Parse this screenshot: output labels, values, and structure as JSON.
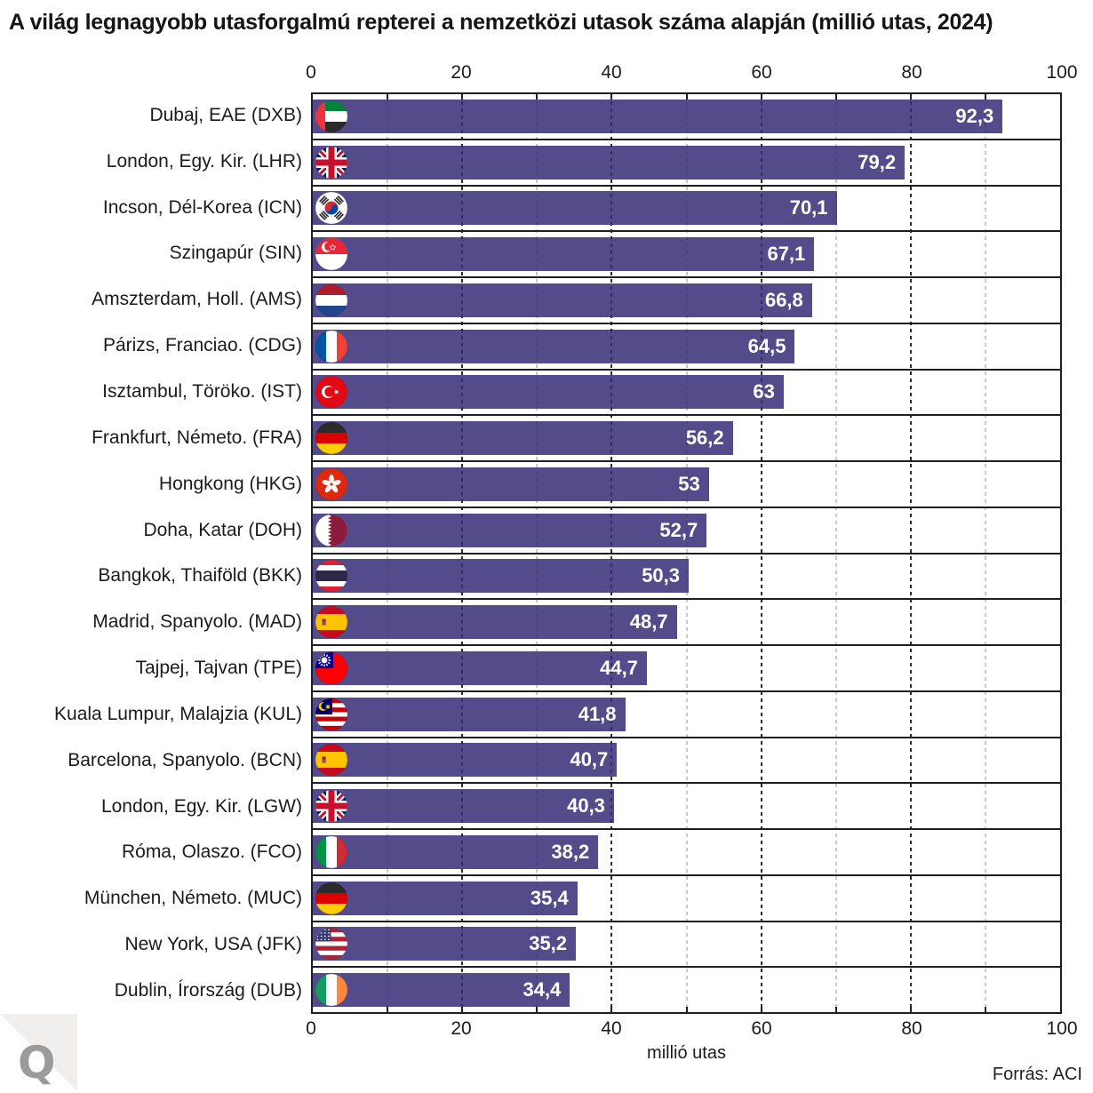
{
  "title": "A világ legnagyobb utasforgalmú repterei a nemzetközi utasok száma alapján (millió utas, 2024)",
  "source_label": "Forrás: ACI",
  "logo": {
    "letter": "Q"
  },
  "colors": {
    "bar_solid": "#5a538e",
    "bar_fill": "rgba(54,45,117,0.85)",
    "frame": "#1f1f1f",
    "grid_major": "#2b2b2b",
    "grid_minor": "#c9c9c9",
    "value_text": "#ffffff"
  },
  "chart_data": {
    "type": "bar",
    "orientation": "horizontal",
    "title": "A világ legnagyobb utasforgalmú repterei a nemzetközi utasok száma alapján (millió utas, 2024)",
    "xlabel": "millió utas",
    "ylabel": "",
    "xlim": [
      0,
      100
    ],
    "grid": true,
    "x_ticks": [
      0,
      20,
      40,
      60,
      80,
      100
    ],
    "x_tick_marks": [
      10,
      20,
      30,
      40,
      50,
      60,
      70,
      80,
      90
    ],
    "x_major_gridlines": [
      20,
      40,
      60,
      80
    ],
    "x_minor_gridlines": [
      10,
      30,
      50,
      70,
      90
    ],
    "categories": [
      "Dubaj, EAE (DXB)",
      "London, Egy. Kir. (LHR)",
      "Incson, Dél-Korea (ICN)",
      "Szingapúr (SIN)",
      "Amszterdam, Holl. (AMS)",
      "Párizs, Franciao. (CDG)",
      "Isztambul, Töröko. (IST)",
      "Frankfurt, Németo. (FRA)",
      "Hongkong (HKG)",
      "Doha, Katar (DOH)",
      "Bangkok, Thaiföld (BKK)",
      "Madrid, Spanyolo. (MAD)",
      "Tajpej, Tajvan (TPE)",
      "Kuala Lumpur, Malajzia (KUL)",
      "Barcelona, Spanyolo. (BCN)",
      "London, Egy. Kir. (LGW)",
      "Róma, Olaszo. (FCO)",
      "München, Németo. (MUC)",
      "New York, USA (JFK)",
      "Dublin, Írország (DUB)"
    ],
    "values": [
      92.3,
      79.2,
      70.1,
      67.1,
      66.8,
      64.5,
      63,
      56.2,
      53,
      52.7,
      50.3,
      48.7,
      44.7,
      41.8,
      40.7,
      40.3,
      38.2,
      35.4,
      35.2,
      34.4
    ],
    "value_labels": [
      "92,3",
      "79,2",
      "70,1",
      "67,1",
      "66,8",
      "64,5",
      "63",
      "56,2",
      "53",
      "52,7",
      "50,3",
      "48,7",
      "44,7",
      "41,8",
      "40,7",
      "40,3",
      "38,2",
      "35,4",
      "35,2",
      "34,4"
    ],
    "flag_codes": [
      "ae",
      "gb",
      "kr",
      "sg",
      "nl",
      "fr",
      "tr",
      "de",
      "hk",
      "qa",
      "th",
      "es",
      "tw",
      "my",
      "es",
      "gb",
      "it",
      "de",
      "us",
      "ie"
    ],
    "flag_names": [
      "uae",
      "uk",
      "south-korea",
      "singapore",
      "netherlands",
      "france",
      "turkey",
      "germany",
      "hong-kong",
      "qatar",
      "thailand",
      "spain",
      "taiwan",
      "malaysia",
      "spain",
      "uk",
      "italy",
      "germany",
      "usa",
      "ireland"
    ],
    "legend": null
  }
}
